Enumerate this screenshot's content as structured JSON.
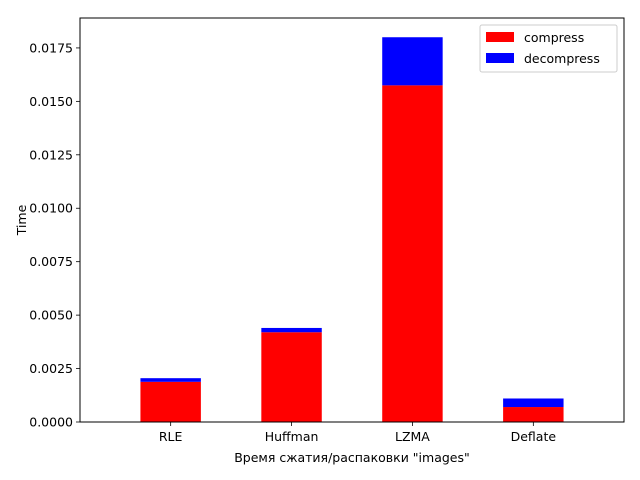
{
  "chart_data": {
    "type": "bar",
    "stacked": true,
    "categories": [
      "RLE",
      "Huffman",
      "LZMA",
      "Deflate"
    ],
    "series": [
      {
        "name": "compress",
        "color": "#ff0000",
        "values": [
          0.00188,
          0.0042,
          0.01575,
          0.0007
        ]
      },
      {
        "name": "decompress",
        "color": "#0000ff",
        "values": [
          0.00017,
          0.0002,
          0.00225,
          0.0004
        ]
      }
    ],
    "title": "",
    "xlabel": "Время сжатия/распаковки \"images\"",
    "ylabel": "Time",
    "ylim": [
      0,
      0.0189
    ],
    "yticks": [
      "0.0000",
      "0.0025",
      "0.0050",
      "0.0075",
      "0.0100",
      "0.0125",
      "0.0150",
      "0.0175"
    ],
    "grid": false,
    "legend_position": "top-right"
  }
}
